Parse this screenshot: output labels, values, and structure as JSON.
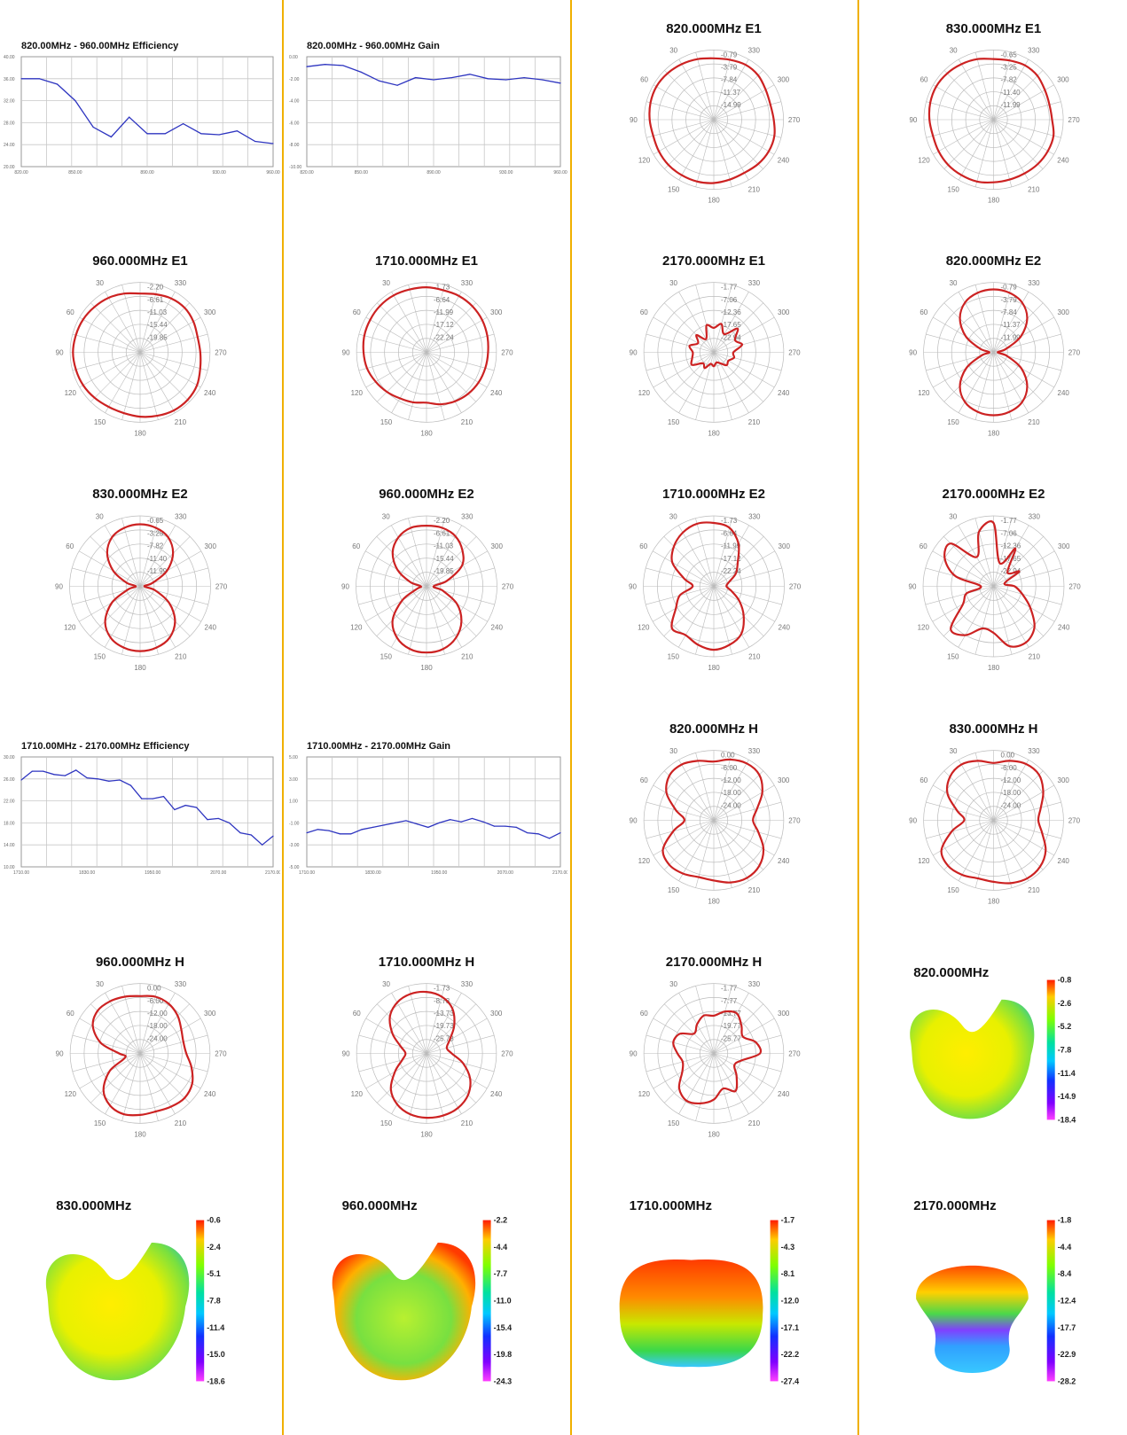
{
  "colors": {
    "separator": "#f0b000",
    "line_series": "#2e35c0",
    "polar_series": "#cc2222",
    "grid": "#c8c8c8"
  },
  "chart_data": [
    {
      "type": "line",
      "title": "820.00MHz - 960.00MHz Efficiency",
      "x": [
        820,
        830,
        840,
        850,
        860,
        870,
        880,
        890,
        900,
        910,
        920,
        930,
        940,
        950,
        960
      ],
      "values": [
        36,
        36,
        35,
        32,
        27.2,
        25.4,
        29,
        26,
        26,
        27.8,
        26,
        25.8,
        26.5,
        24.6,
        24.2
      ],
      "ylim": [
        20,
        40
      ],
      "yticks": [
        "40.00",
        "36.00",
        "32.00",
        "28.00",
        "24.00",
        "20.00"
      ],
      "xticks": [
        "820.00",
        "850.00",
        "890.00",
        "930.00",
        "960.00"
      ],
      "xticks_at": [
        820,
        850,
        890,
        930,
        960
      ]
    },
    {
      "type": "line",
      "title": "820.00MHz - 960.00MHz Gain",
      "x": [
        820,
        830,
        840,
        850,
        860,
        870,
        880,
        890,
        900,
        910,
        920,
        930,
        940,
        950,
        960
      ],
      "values": [
        -0.9,
        -0.7,
        -0.8,
        -1.4,
        -2.2,
        -2.6,
        -1.9,
        -2.1,
        -1.9,
        -1.6,
        -2.0,
        -2.1,
        -1.9,
        -2.1,
        -2.4
      ],
      "ylim": [
        -10,
        0
      ],
      "yticks": [
        "0.00",
        "-2.00",
        "-4.00",
        "-6.00",
        "-8.00",
        "-10.00"
      ],
      "xticks": [
        "820.00",
        "850.00",
        "890.00",
        "930.00",
        "960.00"
      ],
      "xticks_at": [
        820,
        850,
        890,
        930,
        960
      ]
    },
    {
      "type": "polar",
      "title": "820.000MHz  E1",
      "rings": [
        "-0.79",
        "-3.79",
        "-7.84",
        "-11.37",
        "-14.99"
      ],
      "angles": [
        "330",
        "300",
        "270",
        "240",
        "210",
        "180",
        "150",
        "120",
        "90",
        "60",
        "30"
      ],
      "values": [
        0.88,
        0.89,
        0.91,
        0.9,
        0.86,
        0.84,
        0.86,
        0.9,
        0.91,
        0.9,
        0.88,
        0.89,
        0.91,
        0.92,
        0.92,
        0.92,
        0.91,
        0.9,
        0.92,
        0.94,
        0.95,
        0.94,
        0.92,
        0.9
      ]
    },
    {
      "type": "polar",
      "title": "830.000MHz  E1",
      "rings": [
        "-0.65",
        "-3.25",
        "-7.82",
        "-11.40",
        "-11.99"
      ],
      "angles": [
        "330",
        "300",
        "270",
        "240",
        "210",
        "180",
        "150",
        "120",
        "90",
        "60",
        "30"
      ],
      "values": [
        0.87,
        0.88,
        0.9,
        0.89,
        0.85,
        0.83,
        0.84,
        0.89,
        0.9,
        0.9,
        0.89,
        0.89,
        0.9,
        0.92,
        0.92,
        0.92,
        0.91,
        0.9,
        0.92,
        0.94,
        0.95,
        0.94,
        0.92,
        0.9
      ]
    },
    {
      "type": "polar",
      "title": "960.000MHz  E1",
      "rings": [
        "-2.20",
        "-6.61",
        "-11.03",
        "-15.44",
        "-19.85"
      ],
      "angles": [
        "330",
        "300",
        "270",
        "240",
        "210",
        "180",
        "150",
        "120",
        "90",
        "60",
        "30"
      ],
      "values": [
        0.84,
        0.86,
        0.89,
        0.9,
        0.88,
        0.85,
        0.86,
        0.89,
        0.94,
        0.96,
        0.96,
        0.94,
        0.92,
        0.9,
        0.9,
        0.92,
        0.94,
        0.95,
        0.96,
        0.95,
        0.94,
        0.92,
        0.9,
        0.87
      ]
    },
    {
      "type": "polar",
      "title": "1710.000MHz  E1",
      "rings": [
        "-1.73",
        "-6.64",
        "-11.99",
        "-17.12",
        "-22.24"
      ],
      "angles": [
        "330",
        "300",
        "270",
        "240",
        "210",
        "180",
        "150",
        "120",
        "90",
        "60",
        "30"
      ],
      "values": [
        0.93,
        0.92,
        0.93,
        0.93,
        0.92,
        0.9,
        0.88,
        0.87,
        0.86,
        0.84,
        0.81,
        0.77,
        0.72,
        0.74,
        0.76,
        0.8,
        0.84,
        0.88,
        0.9,
        0.92,
        0.93,
        0.94,
        0.94,
        0.93
      ]
    },
    {
      "type": "polar",
      "title": "2170.000MHz  E1",
      "rings": [
        "-1.77",
        "-7.06",
        "-12.36",
        "-17.65",
        "-22.94"
      ],
      "angles": [
        "330",
        "300",
        "270",
        "240",
        "210",
        "180",
        "150",
        "120",
        "90",
        "60",
        "30"
      ],
      "values": [
        0.35,
        0.42,
        0.3,
        0.48,
        0.35,
        0.42,
        0.28,
        0.3,
        0.24,
        0.26,
        0.18,
        0.15,
        0.2,
        0.17,
        0.26,
        0.22,
        0.36,
        0.32,
        0.3,
        0.36,
        0.26,
        0.35,
        0.22,
        0.4
      ]
    },
    {
      "type": "polar",
      "title": "820.000MHz  E2",
      "rings": [
        "-0.79",
        "-3.79",
        "-7.84",
        "-11.37",
        "-11.99"
      ],
      "angles": [
        "330",
        "300",
        "270",
        "240",
        "210",
        "180",
        "150",
        "120",
        "90",
        "60",
        "30"
      ],
      "values": [
        0.9,
        0.88,
        0.82,
        0.68,
        0.45,
        0.18,
        0.06,
        0.2,
        0.46,
        0.68,
        0.82,
        0.88,
        0.9,
        0.88,
        0.82,
        0.68,
        0.45,
        0.18,
        0.06,
        0.2,
        0.46,
        0.68,
        0.82,
        0.88
      ]
    },
    {
      "type": "polar",
      "title": "830.000MHz  E2",
      "rings": [
        "-0.65",
        "-3.25",
        "-7.82",
        "-11.40",
        "-11.99"
      ],
      "angles": [
        "330",
        "300",
        "270",
        "240",
        "210",
        "180",
        "150",
        "120",
        "90",
        "60",
        "30"
      ],
      "values": [
        0.88,
        0.86,
        0.8,
        0.66,
        0.44,
        0.18,
        0.06,
        0.22,
        0.48,
        0.7,
        0.84,
        0.9,
        0.92,
        0.9,
        0.84,
        0.7,
        0.46,
        0.18,
        0.06,
        0.2,
        0.44,
        0.66,
        0.8,
        0.86
      ]
    },
    {
      "type": "polar",
      "title": "960.000MHz  E2",
      "rings": [
        "-2.20",
        "-6.61",
        "-11.03",
        "-15.44",
        "-19.85"
      ],
      "angles": [
        "330",
        "300",
        "270",
        "240",
        "210",
        "180",
        "150",
        "120",
        "90",
        "60",
        "30"
      ],
      "values": [
        0.86,
        0.86,
        0.82,
        0.72,
        0.58,
        0.3,
        0.1,
        0.24,
        0.5,
        0.7,
        0.84,
        0.92,
        0.94,
        0.92,
        0.84,
        0.68,
        0.4,
        0.14,
        0.08,
        0.24,
        0.48,
        0.68,
        0.8,
        0.86
      ]
    },
    {
      "type": "polar",
      "title": "1710.000MHz  E2",
      "rings": [
        "-1.73",
        "-6.64",
        "-11.99",
        "-17.12",
        "-22.24"
      ],
      "angles": [
        "330",
        "300",
        "270",
        "240",
        "210",
        "180",
        "150",
        "120",
        "90",
        "60",
        "30"
      ],
      "values": [
        0.9,
        0.86,
        0.7,
        0.48,
        0.36,
        0.22,
        0.18,
        0.26,
        0.42,
        0.6,
        0.78,
        0.86,
        0.9,
        0.86,
        0.8,
        0.84,
        0.62,
        0.5,
        0.3,
        0.44,
        0.68,
        0.8,
        0.88,
        0.92
      ]
    },
    {
      "type": "polar",
      "title": "2170.000MHz  E2",
      "rings": [
        "-1.77",
        "-7.06",
        "-12.36",
        "-17.65",
        "-22.94"
      ],
      "angles": [
        "330",
        "300",
        "270",
        "240",
        "210",
        "180",
        "150",
        "120",
        "90",
        "60",
        "30"
      ],
      "values": [
        0.9,
        0.34,
        0.62,
        0.28,
        0.42,
        0.16,
        0.3,
        0.42,
        0.6,
        0.82,
        0.92,
        0.88,
        0.66,
        0.62,
        0.8,
        0.86,
        0.5,
        0.4,
        0.18,
        0.56,
        0.8,
        0.86,
        0.48,
        0.8
      ]
    },
    {
      "type": "line",
      "title": "1710.00MHz - 2170.00MHz Efficiency",
      "x": [
        1710,
        1730,
        1750,
        1770,
        1790,
        1810,
        1830,
        1850,
        1870,
        1890,
        1910,
        1930,
        1950,
        1970,
        1990,
        2010,
        2030,
        2050,
        2070,
        2090,
        2110,
        2130,
        2150,
        2170
      ],
      "values": [
        25.8,
        27.4,
        27.4,
        26.8,
        26.6,
        27.6,
        26.2,
        26,
        25.6,
        25.8,
        24.8,
        22.4,
        22.4,
        22.8,
        20.4,
        21.2,
        20.8,
        18.6,
        18.8,
        18,
        16.2,
        15.8,
        14,
        15.6
      ],
      "ylim": [
        10,
        30
      ],
      "yticks": [
        "30.00",
        "26.00",
        "22.00",
        "18.00",
        "14.00",
        "10.00"
      ],
      "xticks": [
        "1710.00",
        "1830.00",
        "1950.00",
        "2070.00",
        "2170.00"
      ],
      "xticks_at": [
        1710,
        1830,
        1950,
        2070,
        2170
      ]
    },
    {
      "type": "line",
      "title": "1710.00MHz - 2170.00MHz Gain",
      "x": [
        1710,
        1730,
        1750,
        1770,
        1790,
        1810,
        1830,
        1850,
        1870,
        1890,
        1910,
        1930,
        1950,
        1970,
        1990,
        2010,
        2030,
        2050,
        2070,
        2090,
        2110,
        2130,
        2150,
        2170
      ],
      "values": [
        -1.9,
        -1.6,
        -1.7,
        -2.0,
        -2.0,
        -1.6,
        -1.4,
        -1.2,
        -1.0,
        -0.8,
        -1.1,
        -1.4,
        -1.0,
        -0.7,
        -0.9,
        -0.6,
        -0.9,
        -1.3,
        -1.3,
        -1.4,
        -1.9,
        -2.0,
        -2.4,
        -1.9
      ],
      "ylim": [
        -5,
        5
      ],
      "yticks": [
        "5.00",
        "3.00",
        "1.00",
        "-1.00",
        "-3.00",
        "-5.00"
      ],
      "xticks": [
        "1710.00",
        "1830.00",
        "1950.00",
        "2070.00",
        "2170.00"
      ],
      "xticks_at": [
        1710,
        1830,
        1950,
        2070,
        2170
      ]
    },
    {
      "type": "polar",
      "title": "820.000MHz  H",
      "rings": [
        "0.00",
        "-6.00",
        "-12.00",
        "-18.00",
        "-24.00"
      ],
      "angles": [
        "330",
        "300",
        "270",
        "240",
        "210",
        "180",
        "150",
        "120",
        "90",
        "60",
        "30"
      ],
      "values": [
        0.84,
        0.9,
        0.94,
        0.92,
        0.8,
        0.64,
        0.56,
        0.66,
        0.82,
        0.92,
        0.95,
        0.92,
        0.86,
        0.84,
        0.88,
        0.9,
        0.84,
        0.6,
        0.42,
        0.56,
        0.78,
        0.9,
        0.92,
        0.88
      ]
    },
    {
      "type": "polar",
      "title": "830.000MHz  H",
      "rings": [
        "0.00",
        "-6.00",
        "-12.00",
        "-18.00",
        "-24.00"
      ],
      "angles": [
        "330",
        "300",
        "270",
        "240",
        "210",
        "180",
        "150",
        "120",
        "90",
        "60",
        "30"
      ],
      "values": [
        0.82,
        0.88,
        0.93,
        0.92,
        0.82,
        0.7,
        0.64,
        0.72,
        0.86,
        0.94,
        0.96,
        0.93,
        0.88,
        0.86,
        0.9,
        0.92,
        0.86,
        0.62,
        0.42,
        0.54,
        0.76,
        0.88,
        0.92,
        0.88
      ]
    },
    {
      "type": "polar",
      "title": "960.000MHz  H",
      "rings": [
        "0.00",
        "-6.00",
        "-12.00",
        "-18.00",
        "-24.00"
      ],
      "angles": [
        "330",
        "300",
        "270",
        "240",
        "210",
        "180",
        "150",
        "120",
        "90",
        "60",
        "30"
      ],
      "values": [
        0.82,
        0.84,
        0.82,
        0.76,
        0.68,
        0.64,
        0.66,
        0.76,
        0.86,
        0.9,
        0.88,
        0.86,
        0.88,
        0.9,
        0.86,
        0.74,
        0.5,
        0.22,
        0.3,
        0.58,
        0.78,
        0.86,
        0.86,
        0.84
      ]
    },
    {
      "type": "polar",
      "title": "1710.000MHz  H",
      "rings": [
        "-1.73",
        "-8.73",
        "-13.73",
        "-19.73",
        "-25.73"
      ],
      "angles": [
        "330",
        "300",
        "270",
        "240",
        "210",
        "180",
        "150",
        "120",
        "90",
        "60",
        "30"
      ],
      "values": [
        0.88,
        0.84,
        0.74,
        0.56,
        0.38,
        0.3,
        0.36,
        0.54,
        0.72,
        0.84,
        0.9,
        0.92,
        0.92,
        0.9,
        0.84,
        0.72,
        0.52,
        0.36,
        0.3,
        0.38,
        0.56,
        0.74,
        0.84,
        0.88
      ]
    },
    {
      "type": "polar",
      "title": "2170.000MHz  H",
      "rings": [
        "-1.77",
        "-7.77",
        "-13.77",
        "-19.77",
        "-25.77"
      ],
      "angles": [
        "330",
        "300",
        "270",
        "240",
        "210",
        "180",
        "150",
        "120",
        "90",
        "60",
        "30"
      ],
      "values": [
        0.54,
        0.62,
        0.66,
        0.56,
        0.48,
        0.62,
        0.66,
        0.4,
        0.34,
        0.46,
        0.62,
        0.52,
        0.66,
        0.74,
        0.78,
        0.7,
        0.52,
        0.46,
        0.52,
        0.6,
        0.56,
        0.4,
        0.48,
        0.56
      ]
    },
    {
      "type": "heatmap",
      "title": "820.000MHz",
      "colorbar": [
        "-0.8",
        "-2.6",
        "-5.2",
        "-7.8",
        "-11.4",
        "-14.9",
        "-18.4"
      ],
      "shape": "heart"
    },
    {
      "type": "heatmap",
      "title": "830.000MHz",
      "colorbar": [
        "-0.6",
        "-2.4",
        "-5.1",
        "-7.8",
        "-11.4",
        "-15.0",
        "-18.6"
      ],
      "shape": "heart"
    },
    {
      "type": "heatmap",
      "title": "960.000MHz",
      "colorbar": [
        "-2.2",
        "-4.4",
        "-7.7",
        "-11.0",
        "-15.4",
        "-19.8",
        "-24.3"
      ],
      "shape": "heart2"
    },
    {
      "type": "heatmap",
      "title": "1710.000MHz",
      "colorbar": [
        "-1.7",
        "-4.3",
        "-8.1",
        "-12.0",
        "-17.1",
        "-22.2",
        "-27.4"
      ],
      "shape": "dome"
    },
    {
      "type": "heatmap",
      "title": "2170.000MHz",
      "colorbar": [
        "-1.8",
        "-4.4",
        "-8.4",
        "-12.4",
        "-17.7",
        "-22.9",
        "-28.2"
      ],
      "shape": "mushroom"
    }
  ]
}
